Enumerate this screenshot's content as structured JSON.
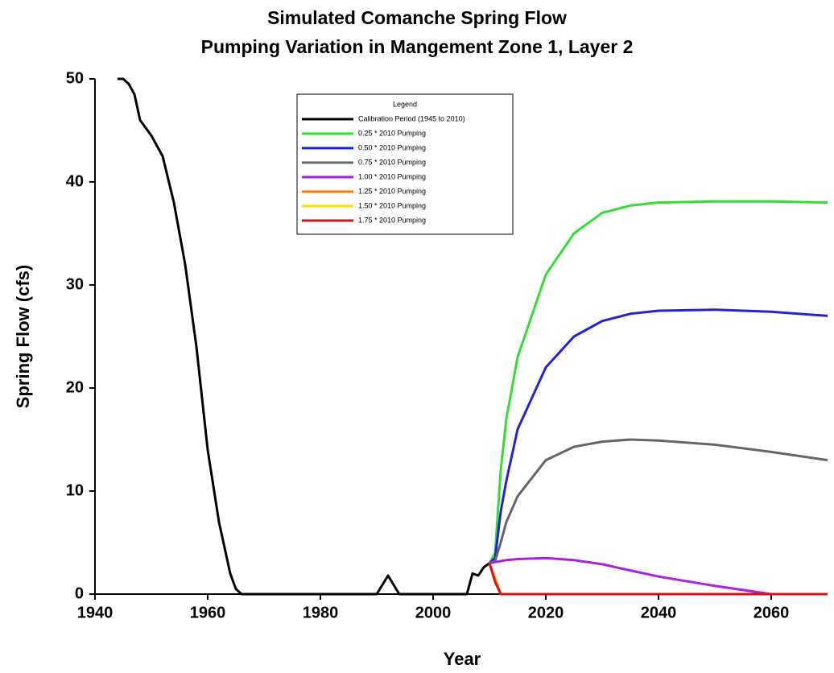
{
  "chart_data": {
    "type": "line",
    "title": "Simulated Comanche Spring Flow",
    "subtitle": "Pumping Variation in Mangement Zone 1, Layer 2",
    "x_label": "Year",
    "y_label": "Spring Flow (cfs)",
    "legend_title": "Legend",
    "legend_position": "top-center",
    "grid": false,
    "xlim": [
      1940,
      2070
    ],
    "xticks": [
      1940,
      1960,
      1980,
      2000,
      2020,
      2040,
      2060
    ],
    "ylim": [
      0,
      50
    ],
    "yticks": [
      0,
      10,
      20,
      30,
      40,
      50
    ],
    "x": [
      1944,
      1945,
      1946,
      1947,
      1948,
      1950,
      1952,
      1954,
      1956,
      1958,
      1960,
      1962,
      1964,
      1965,
      1966,
      1970,
      1980,
      1990,
      1992,
      1994,
      2000,
      2006,
      2007,
      2008,
      2009,
      2010,
      2011,
      2012,
      2013,
      2015,
      2020,
      2025,
      2030,
      2035,
      2040,
      2050,
      2060,
      2070
    ],
    "series": [
      {
        "name": "Calibration Period (1945 to 2010)",
        "color": "#000000",
        "values": [
          50,
          50,
          49.5,
          48.5,
          46,
          44.5,
          42.5,
          38,
          32,
          24,
          14,
          7,
          2,
          0.5,
          0,
          0,
          0,
          0,
          1.8,
          0,
          0,
          0,
          2,
          1.8,
          2.6,
          3,
          null,
          null,
          null,
          null,
          null,
          null,
          null,
          null,
          null,
          null,
          null,
          null
        ]
      },
      {
        "name": "0.25 * 2010 Pumping",
        "color": "#33dd33",
        "values": [
          null,
          null,
          null,
          null,
          null,
          null,
          null,
          null,
          null,
          null,
          null,
          null,
          null,
          null,
          null,
          null,
          null,
          null,
          null,
          null,
          null,
          null,
          null,
          null,
          null,
          3,
          4,
          12,
          17,
          23,
          31,
          35,
          37,
          37.7,
          38,
          38.1,
          38.1,
          38
        ]
      },
      {
        "name": "0.50 * 2010 Pumping",
        "color": "#2222dd",
        "values": [
          null,
          null,
          null,
          null,
          null,
          null,
          null,
          null,
          null,
          null,
          null,
          null,
          null,
          null,
          null,
          null,
          null,
          null,
          null,
          null,
          null,
          null,
          null,
          null,
          null,
          3,
          3.5,
          8,
          11,
          16,
          22,
          25,
          26.5,
          27.2,
          27.5,
          27.6,
          27.4,
          27
        ]
      },
      {
        "name": "0.75 * 2010 Pumping",
        "color": "#666666",
        "values": [
          null,
          null,
          null,
          null,
          null,
          null,
          null,
          null,
          null,
          null,
          null,
          null,
          null,
          null,
          null,
          null,
          null,
          null,
          null,
          null,
          null,
          null,
          null,
          null,
          null,
          3,
          3.2,
          5,
          7,
          9.5,
          13,
          14.3,
          14.8,
          15,
          14.9,
          14.5,
          13.8,
          13
        ]
      },
      {
        "name": "1.00 * 2010 Pumping",
        "color": "#aa22dd",
        "values": [
          null,
          null,
          null,
          null,
          null,
          null,
          null,
          null,
          null,
          null,
          null,
          null,
          null,
          null,
          null,
          null,
          null,
          null,
          null,
          null,
          null,
          null,
          null,
          null,
          null,
          3,
          3.1,
          3.2,
          3.3,
          3.4,
          3.5,
          3.3,
          2.9,
          2.3,
          1.7,
          0.8,
          0,
          0
        ]
      },
      {
        "name": "1.25 * 2010 Pumping",
        "color": "#ff7700",
        "values": [
          null,
          null,
          null,
          null,
          null,
          null,
          null,
          null,
          null,
          null,
          null,
          null,
          null,
          null,
          null,
          null,
          null,
          null,
          null,
          null,
          null,
          null,
          null,
          null,
          null,
          3,
          1.5,
          0,
          0,
          0,
          0,
          0,
          0,
          0,
          0,
          0,
          0,
          0
        ]
      },
      {
        "name": "1.50 * 2010 Pumping",
        "color": "#ffdd00",
        "values": [
          null,
          null,
          null,
          null,
          null,
          null,
          null,
          null,
          null,
          null,
          null,
          null,
          null,
          null,
          null,
          null,
          null,
          null,
          null,
          null,
          null,
          null,
          null,
          null,
          null,
          3,
          1.3,
          0,
          0,
          0,
          0,
          0,
          0,
          0,
          0,
          0,
          0,
          0
        ]
      },
      {
        "name": "1.75 * 2010 Pumping",
        "color": "#dd1111",
        "values": [
          null,
          null,
          null,
          null,
          null,
          null,
          null,
          null,
          null,
          null,
          null,
          null,
          null,
          null,
          null,
          null,
          null,
          null,
          null,
          null,
          null,
          null,
          null,
          null,
          null,
          3,
          1.2,
          0,
          0,
          0,
          0,
          0,
          0,
          0,
          0,
          0,
          0,
          0
        ]
      }
    ]
  }
}
